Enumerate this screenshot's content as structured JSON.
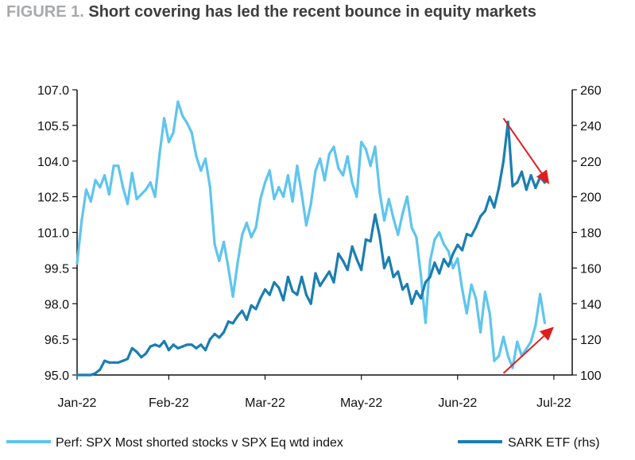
{
  "figure_label": "FIGURE 1.",
  "title": "Short covering has led the recent bounce in equity markets",
  "colors": {
    "series_light": "#5ec5ee",
    "series_dark": "#1a7eb2",
    "arrow": "#e01e1e",
    "axis": "#111111"
  },
  "chart_data": {
    "type": "line",
    "title": "Short covering has led the recent bounce in equity markets",
    "x_tick_labels": [
      "Jan-22",
      "Feb-22",
      "Mar-22",
      "May-22",
      "Jun-22",
      "Jul-22"
    ],
    "x_tick_dates": [
      "2022-01-01",
      "2022-02-10",
      "2022-03-24",
      "2022-05-05",
      "2022-06-16",
      "2022-07-28"
    ],
    "x_range": [
      "2022-01-01",
      "2022-08-05"
    ],
    "y_left": {
      "ylim": [
        95.0,
        107.0
      ],
      "ticks": [
        "95.0",
        "96.5",
        "98.0",
        "99.5",
        "101.0",
        "102.5",
        "104.0",
        "105.5",
        "107.0"
      ]
    },
    "y_right": {
      "ylim": [
        100,
        260
      ],
      "ticks": [
        "100",
        "120",
        "140",
        "160",
        "180",
        "200",
        "220",
        "240",
        "260"
      ]
    },
    "grid": false,
    "legend_position": "bottom",
    "series": [
      {
        "name": "Perf: SPX Most shorted stocks v SPX Eq wtd index",
        "axis": "left",
        "color": "#5ec5ee",
        "x": [
          "2022-01-01",
          "2022-01-03",
          "2022-01-05",
          "2022-01-07",
          "2022-01-09",
          "2022-01-11",
          "2022-01-13",
          "2022-01-15",
          "2022-01-17",
          "2022-01-19",
          "2022-01-21",
          "2022-01-23",
          "2022-01-25",
          "2022-01-27",
          "2022-01-29",
          "2022-01-31",
          "2022-02-02",
          "2022-02-04",
          "2022-02-06",
          "2022-02-08",
          "2022-02-10",
          "2022-02-12",
          "2022-02-14",
          "2022-02-16",
          "2022-02-18",
          "2022-02-20",
          "2022-02-22",
          "2022-02-24",
          "2022-02-26",
          "2022-02-28",
          "2022-03-02",
          "2022-03-04",
          "2022-03-06",
          "2022-03-08",
          "2022-03-10",
          "2022-03-12",
          "2022-03-14",
          "2022-03-16",
          "2022-03-18",
          "2022-03-20",
          "2022-03-22",
          "2022-03-24",
          "2022-03-26",
          "2022-03-28",
          "2022-03-30",
          "2022-04-01",
          "2022-04-03",
          "2022-04-05",
          "2022-04-07",
          "2022-04-09",
          "2022-04-11",
          "2022-04-13",
          "2022-04-15",
          "2022-04-17",
          "2022-04-19",
          "2022-04-21",
          "2022-04-23",
          "2022-04-25",
          "2022-04-27",
          "2022-04-29",
          "2022-05-01",
          "2022-05-03",
          "2022-05-05",
          "2022-05-07",
          "2022-05-09",
          "2022-05-11",
          "2022-05-13",
          "2022-05-15",
          "2022-05-17",
          "2022-05-19",
          "2022-05-21",
          "2022-05-23",
          "2022-05-25",
          "2022-05-27",
          "2022-05-29",
          "2022-05-31",
          "2022-06-02",
          "2022-06-04",
          "2022-06-06",
          "2022-06-08",
          "2022-06-10",
          "2022-06-12",
          "2022-06-14",
          "2022-06-16",
          "2022-06-18",
          "2022-06-20",
          "2022-06-22",
          "2022-06-24",
          "2022-06-26",
          "2022-06-28",
          "2022-06-30",
          "2022-07-02",
          "2022-07-04",
          "2022-07-06",
          "2022-07-08",
          "2022-07-10",
          "2022-07-12",
          "2022-07-14",
          "2022-07-16",
          "2022-07-18",
          "2022-07-20",
          "2022-07-22",
          "2022-07-24",
          "2022-07-26",
          "2022-07-28",
          "2022-07-30",
          "2022-08-01"
        ],
        "values": [
          99.7,
          101.5,
          102.8,
          102.3,
          103.2,
          102.9,
          103.4,
          102.6,
          103.8,
          103.8,
          102.9,
          102.2,
          103.5,
          102.4,
          102.6,
          102.8,
          103.1,
          102.5,
          104.3,
          105.8,
          104.8,
          105.2,
          106.5,
          105.9,
          105.6,
          105.2,
          104.2,
          103.6,
          104.1,
          102.9,
          100.5,
          99.8,
          100.6,
          99.5,
          98.3,
          99.7,
          100.9,
          101.4,
          100.8,
          101.2,
          102.4,
          103.1,
          103.6,
          102.4,
          102.9,
          102.5,
          103.4,
          102.3,
          103.8,
          102.6,
          101.3,
          102.2,
          103.6,
          104.1,
          103.2,
          104.3,
          104.6,
          103.7,
          103.4,
          104.2,
          103.1,
          102.5,
          104.8,
          104.5,
          103.8,
          104.6,
          102.7,
          101.5,
          102.4,
          101.6,
          100.9,
          101.8,
          102.5,
          101.2,
          100.8,
          99.2,
          97.2,
          99.8,
          100.7,
          101.0,
          100.5,
          100.2,
          99.5,
          99.9,
          98.6,
          97.6,
          98.8,
          98.2,
          96.8,
          98.5,
          97.6,
          95.6,
          95.8,
          96.6,
          95.8,
          95.3,
          96.4,
          95.8,
          96.1,
          96.4,
          97.1,
          98.4,
          97.2,
          null,
          null,
          null,
          null
        ]
      },
      {
        "name": "SARK ETF (rhs)",
        "axis": "right",
        "color": "#1a7eb2",
        "x": [
          "2022-01-01",
          "2022-01-03",
          "2022-01-05",
          "2022-01-07",
          "2022-01-09",
          "2022-01-11",
          "2022-01-13",
          "2022-01-15",
          "2022-01-17",
          "2022-01-19",
          "2022-01-21",
          "2022-01-23",
          "2022-01-25",
          "2022-01-27",
          "2022-01-29",
          "2022-01-31",
          "2022-02-02",
          "2022-02-04",
          "2022-02-06",
          "2022-02-08",
          "2022-02-10",
          "2022-02-12",
          "2022-02-14",
          "2022-02-16",
          "2022-02-18",
          "2022-02-20",
          "2022-02-22",
          "2022-02-24",
          "2022-02-26",
          "2022-02-28",
          "2022-03-02",
          "2022-03-04",
          "2022-03-06",
          "2022-03-08",
          "2022-03-10",
          "2022-03-12",
          "2022-03-14",
          "2022-03-16",
          "2022-03-18",
          "2022-03-20",
          "2022-03-22",
          "2022-03-24",
          "2022-03-26",
          "2022-03-28",
          "2022-03-30",
          "2022-04-01",
          "2022-04-03",
          "2022-04-05",
          "2022-04-07",
          "2022-04-09",
          "2022-04-11",
          "2022-04-13",
          "2022-04-15",
          "2022-04-17",
          "2022-04-19",
          "2022-04-21",
          "2022-04-23",
          "2022-04-25",
          "2022-04-27",
          "2022-04-29",
          "2022-05-01",
          "2022-05-03",
          "2022-05-05",
          "2022-05-07",
          "2022-05-09",
          "2022-05-11",
          "2022-05-13",
          "2022-05-15",
          "2022-05-17",
          "2022-05-19",
          "2022-05-21",
          "2022-05-23",
          "2022-05-25",
          "2022-05-27",
          "2022-05-29",
          "2022-05-31",
          "2022-06-02",
          "2022-06-04",
          "2022-06-06",
          "2022-06-08",
          "2022-06-10",
          "2022-06-12",
          "2022-06-14",
          "2022-06-16",
          "2022-06-18",
          "2022-06-20",
          "2022-06-22",
          "2022-06-24",
          "2022-06-26",
          "2022-06-28",
          "2022-06-30",
          "2022-07-02",
          "2022-07-04",
          "2022-07-06",
          "2022-07-08",
          "2022-07-10",
          "2022-07-12",
          "2022-07-14",
          "2022-07-16",
          "2022-07-18",
          "2022-07-20",
          "2022-07-22",
          "2022-07-24",
          "2022-07-26",
          "2022-07-28",
          "2022-07-30",
          "2022-08-01"
        ],
        "values": [
          100,
          100,
          100,
          100,
          101,
          103,
          108,
          107,
          107,
          107,
          108,
          109,
          115,
          113,
          110,
          112,
          116,
          117,
          116,
          119,
          114,
          117,
          115,
          116,
          117,
          117,
          115,
          117,
          114,
          120,
          123,
          121,
          124,
          130,
          129,
          133,
          136,
          131,
          139,
          137,
          143,
          148,
          145,
          152,
          149,
          142,
          155,
          147,
          145,
          155,
          145,
          140,
          157,
          150,
          154,
          158,
          152,
          168,
          164,
          159,
          172,
          165,
          159,
          176,
          175,
          190,
          178,
          160,
          166,
          155,
          158,
          148,
          151,
          140,
          147,
          143,
          152,
          155,
          163,
          157,
          165,
          161,
          168,
          173,
          170,
          179,
          178,
          183,
          189,
          192,
          200,
          194,
          205,
          220,
          242,
          206,
          208,
          214,
          204,
          212,
          205,
          211,
          208,
          null,
          null,
          null,
          null
        ]
      }
    ],
    "annotations": [
      {
        "type": "arrow",
        "direction": "down",
        "color": "#e01e1e",
        "from": [
          "2022-07-06",
          244
        ],
        "to": [
          "2022-07-26",
          207
        ]
      },
      {
        "type": "arrow",
        "direction": "up",
        "color": "#e01e1e",
        "from": [
          "2022-07-06",
          101
        ],
        "to": [
          "2022-07-28",
          127
        ]
      }
    ]
  }
}
